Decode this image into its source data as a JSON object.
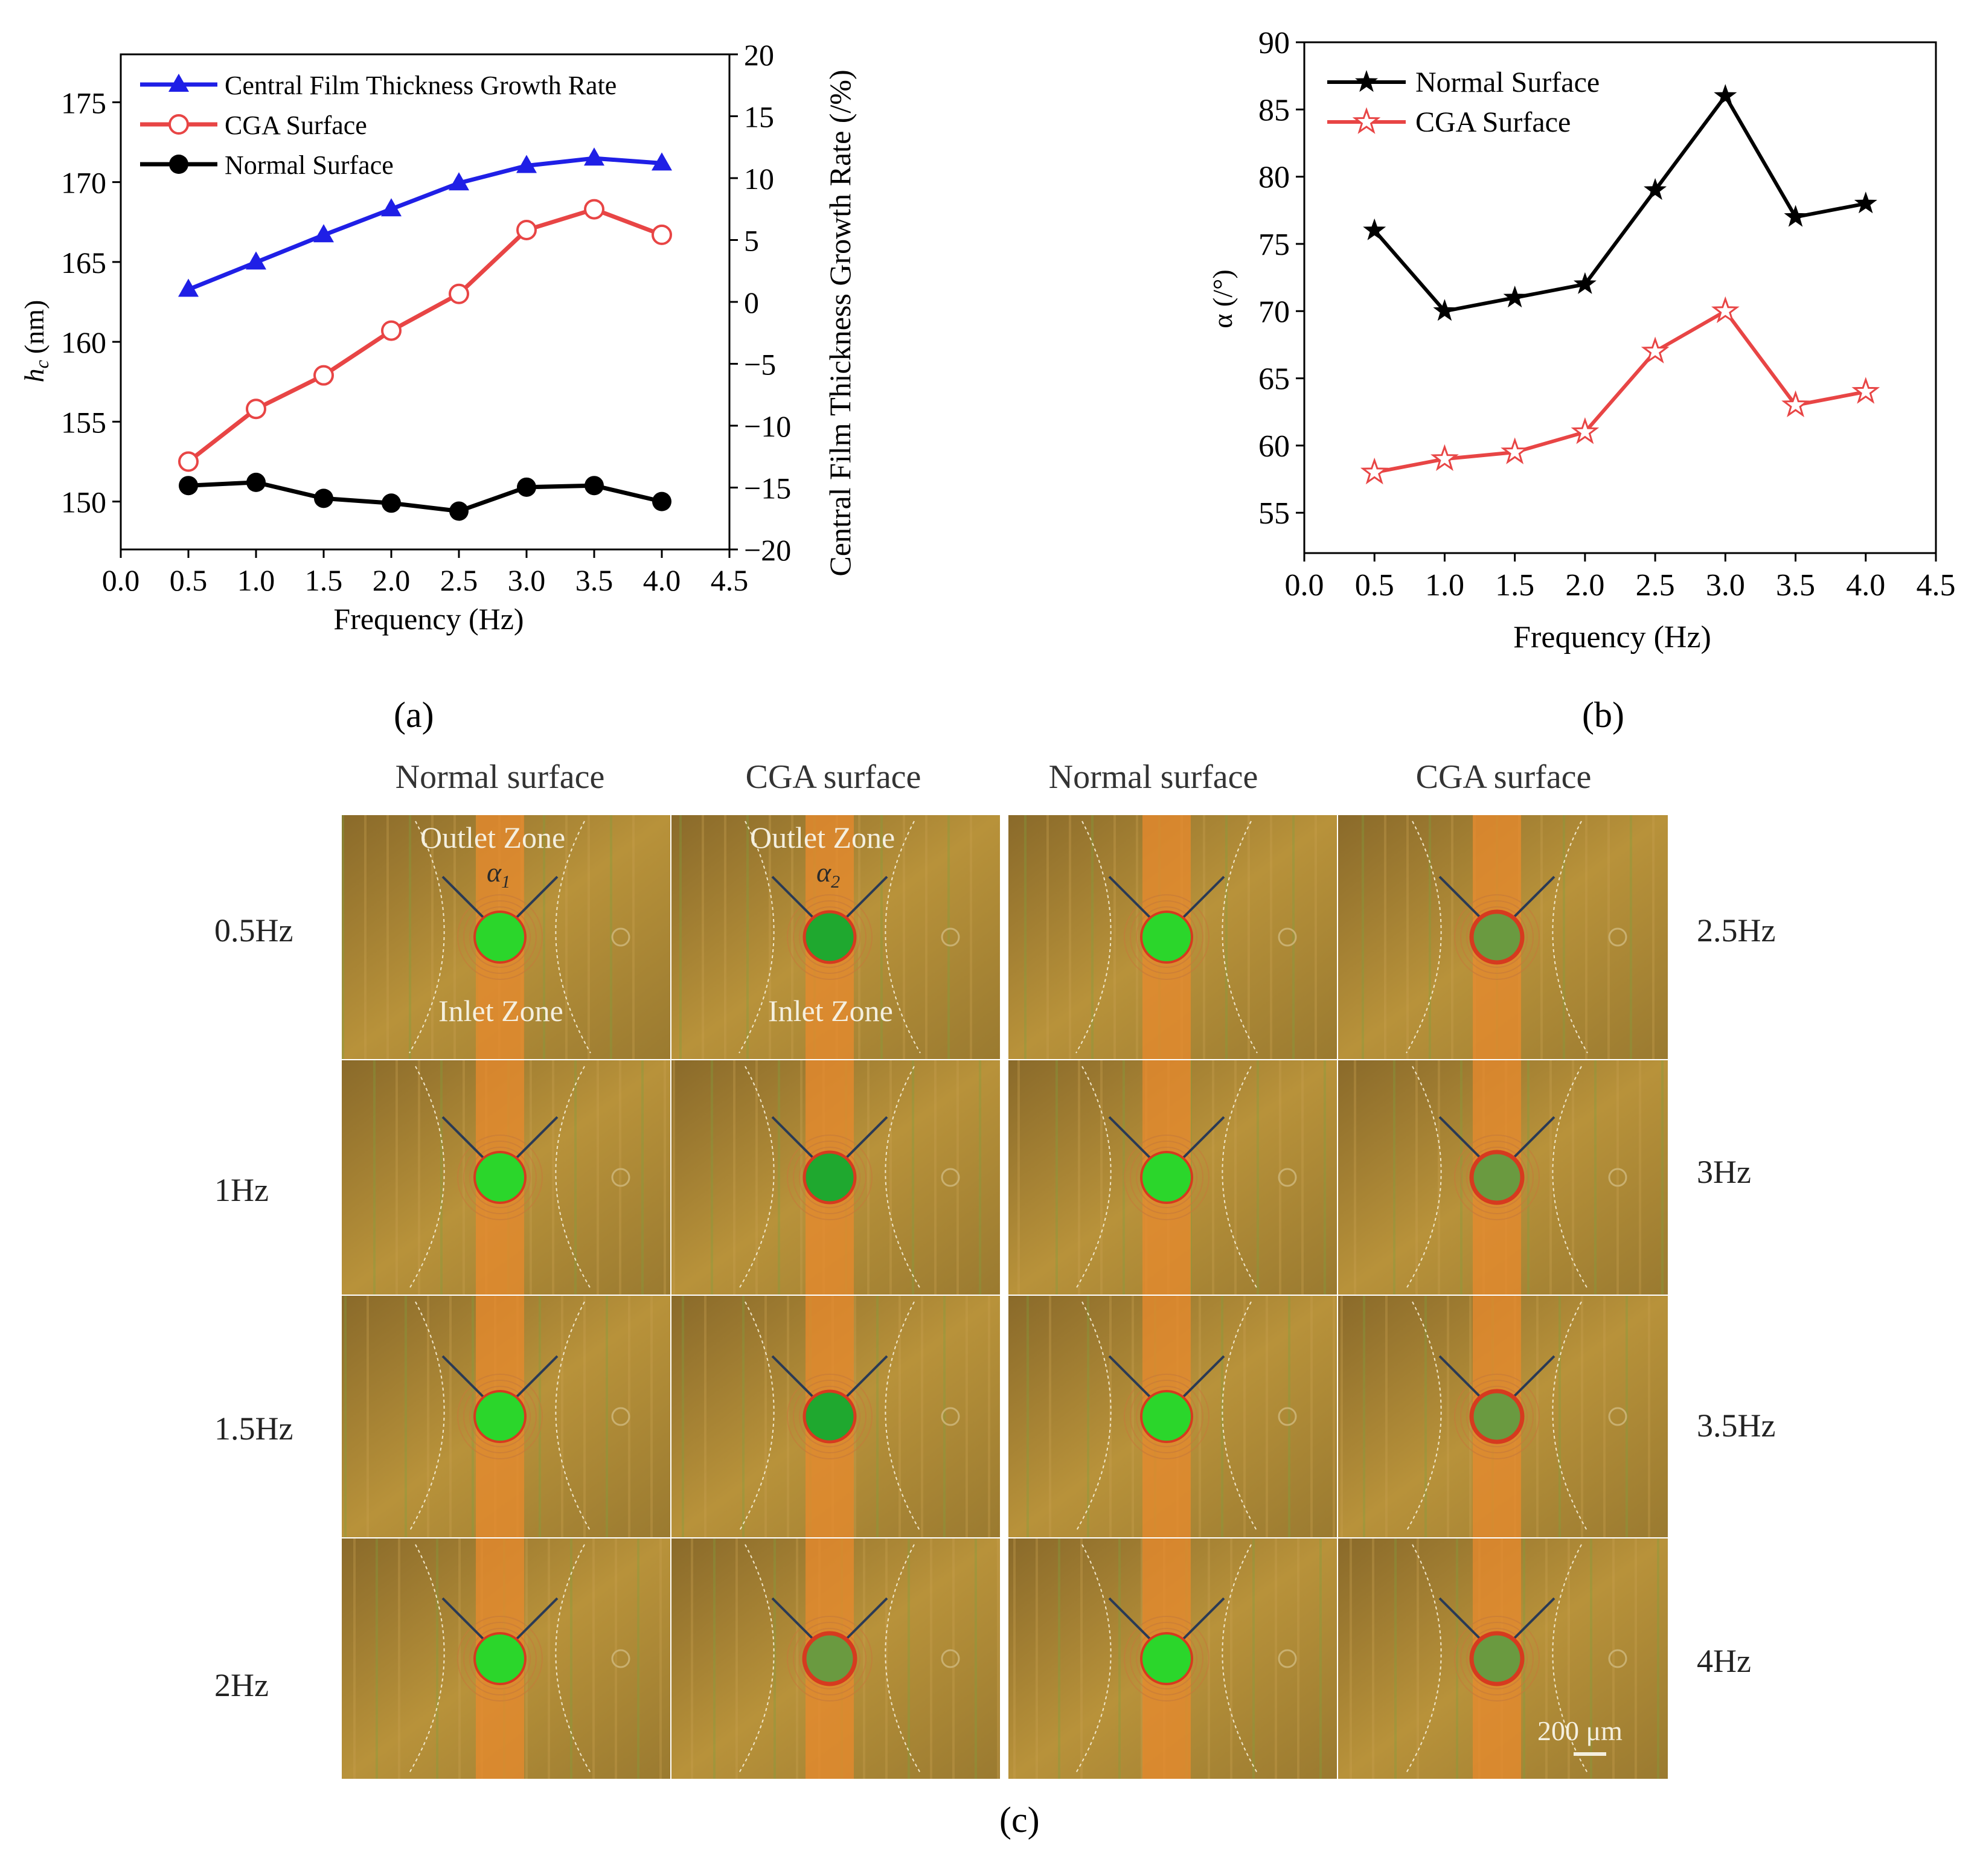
{
  "chart_data": [
    {
      "type": "line",
      "panel": "a",
      "xlabel": "Frequency (Hz)",
      "ylabel": "h_c (nm)",
      "ylabel_main": "h",
      "ylabel_sub": "c",
      "ylabel_unit": "(nm)",
      "y2label": "Central Film Thickness Growth Rate (/%)",
      "xlim": [
        0.0,
        4.5
      ],
      "ylim": [
        147,
        178
      ],
      "y2lim": [
        -20,
        20
      ],
      "x_ticks": [
        "0.0",
        "0.5",
        "1.0",
        "1.5",
        "2.0",
        "2.5",
        "3.0",
        "3.5",
        "4.0",
        "4.5"
      ],
      "y_ticks": [
        "150",
        "155",
        "160",
        "165",
        "170",
        "175"
      ],
      "y2_ticks": [
        "20",
        "15",
        "10",
        "5",
        "0",
        "−5",
        "−10",
        "−15",
        "−20"
      ],
      "x": [
        0.5,
        1.0,
        1.5,
        2.0,
        2.5,
        3.0,
        3.5,
        4.0
      ],
      "series": [
        {
          "name": "Central Film Thickness Growth Rate",
          "axis": "right",
          "color": "#1f1fe6",
          "marker": "triangle",
          "values": [
            1.0,
            3.2,
            5.4,
            7.5,
            9.6,
            11.0,
            11.6,
            11.2
          ]
        },
        {
          "name": "CGA Surface",
          "axis": "left",
          "color": "#e84545",
          "marker": "open-circle",
          "values": [
            152.5,
            155.8,
            157.9,
            160.7,
            163.0,
            167.0,
            168.3,
            166.7
          ]
        },
        {
          "name": "Normal Surface",
          "axis": "left",
          "color": "#000000",
          "marker": "filled-circle",
          "values": [
            151.0,
            151.2,
            150.2,
            149.9,
            149.4,
            150.9,
            151.0,
            150.0
          ]
        }
      ],
      "legend_position": "top-left"
    },
    {
      "type": "line",
      "panel": "b",
      "xlabel": "Frequency (Hz)",
      "ylabel": "α (/°)",
      "xlim": [
        0.0,
        4.5
      ],
      "ylim": [
        52,
        90
      ],
      "x_ticks": [
        "0.0",
        "0.5",
        "1.0",
        "1.5",
        "2.0",
        "2.5",
        "3.0",
        "3.5",
        "4.0",
        "4.5"
      ],
      "y_ticks": [
        "55",
        "60",
        "65",
        "70",
        "75",
        "80",
        "85",
        "90"
      ],
      "x": [
        0.5,
        1.0,
        1.5,
        2.0,
        2.5,
        3.0,
        3.5,
        4.0
      ],
      "series": [
        {
          "name": "Normal Surface",
          "color": "#000000",
          "marker": "filled-star",
          "values": [
            76,
            70,
            71,
            72,
            79,
            86,
            77,
            78
          ]
        },
        {
          "name": "CGA Surface",
          "color": "#e84545",
          "marker": "open-star",
          "values": [
            58,
            59,
            59.5,
            61,
            67,
            70,
            63,
            64
          ]
        }
      ],
      "legend_position": "top-left"
    }
  ],
  "labels": {
    "panel_a": "(a)",
    "panel_b": "(b)",
    "panel_c": "(c)",
    "col_headers": [
      "Normal surface",
      "CGA surface",
      "Normal surface",
      "CGA surface"
    ],
    "left_freqs": [
      "0.5Hz",
      "1Hz",
      "1.5Hz",
      "2Hz"
    ],
    "right_freqs": [
      "2.5Hz",
      "3Hz",
      "3.5Hz",
      "4Hz"
    ],
    "outlet_zone": "Outlet Zone",
    "inlet_zone": "Inlet Zone",
    "alpha1": "α",
    "alpha1_sub": "1",
    "alpha2": "α",
    "alpha2_sub": "2",
    "scale_bar": "200 μm"
  },
  "colors": {
    "tile_bg": "#b8923a",
    "stripe": "#e88a2e",
    "green_spot": "#2bd62b",
    "red_ring": "#d63a1f"
  }
}
